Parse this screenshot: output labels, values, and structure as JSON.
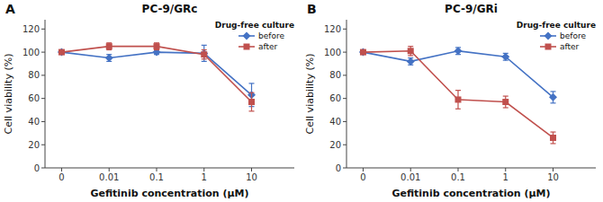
{
  "chart_data": [
    {
      "type": "line",
      "title": "PC-9/GRc",
      "annotations": [
        "A"
      ],
      "xlabel": "Gefitinib concentration (μM)",
      "ylabel": "Cell viability (%)",
      "categories": [
        "0",
        "0.01",
        "0.1",
        "1",
        "10"
      ],
      "series": [
        {
          "name": "before",
          "color": "#4472C4",
          "marker": "diamond",
          "values": [
            100,
            95,
            100,
            99,
            63
          ],
          "errors": [
            1,
            3,
            2,
            7,
            10
          ]
        },
        {
          "name": "after",
          "color": "#C0504D",
          "marker": "square",
          "values": [
            100,
            105,
            105,
            98,
            57
          ],
          "errors": [
            1,
            3,
            3,
            4,
            8
          ]
        }
      ],
      "legend_title": "Drug-free culture",
      "legend": "upper right",
      "grid": false,
      "ylim": [
        0,
        128
      ],
      "yticks": [
        0,
        20,
        40,
        60,
        80,
        100,
        120
      ]
    },
    {
      "type": "line",
      "title": "PC-9/GRi",
      "annotations": [
        "B"
      ],
      "xlabel": "Gefitinib concentration (μM)",
      "ylabel": "Cell viability (%)",
      "categories": [
        "0",
        "0.01",
        "0.1",
        "1",
        "10"
      ],
      "series": [
        {
          "name": "before",
          "color": "#4472C4",
          "marker": "diamond",
          "values": [
            100,
            92,
            101,
            96,
            61
          ],
          "errors": [
            1,
            3,
            3,
            3,
            5
          ]
        },
        {
          "name": "after",
          "color": "#C0504D",
          "marker": "square",
          "values": [
            100,
            101,
            59,
            57,
            26
          ],
          "errors": [
            1,
            4,
            8,
            5,
            5
          ]
        }
      ],
      "legend_title": "Drug-free culture",
      "legend": "upper right",
      "grid": false,
      "ylim": [
        0,
        128
      ],
      "yticks": [
        0,
        20,
        40,
        60,
        80,
        100,
        120
      ]
    }
  ]
}
